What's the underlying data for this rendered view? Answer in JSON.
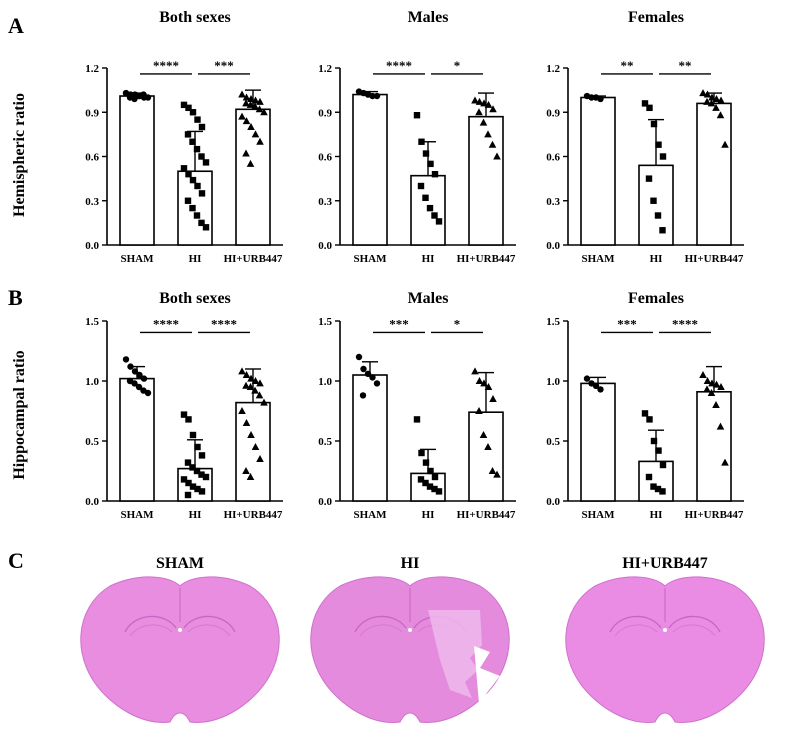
{
  "panels": [
    {
      "letter": "A",
      "ylabel": "Hemispheric ratio"
    },
    {
      "letter": "B",
      "ylabel": "Hippocampal ratio"
    },
    {
      "letter": "C"
    }
  ],
  "chart_data": [
    {
      "type": "bar",
      "panel": "A",
      "title": "Both sexes",
      "ylabel": "Hemispheric ratio",
      "categories": [
        "SHAM",
        "HI",
        "HI+URB447"
      ],
      "ylim": [
        0,
        1.2
      ],
      "yticks": [
        0.0,
        0.3,
        0.6,
        0.9,
        1.2
      ],
      "values": [
        1.01,
        0.5,
        0.92
      ],
      "error": [
        0.02,
        0.27,
        0.13
      ],
      "points": [
        [
          1.03,
          1.02,
          1.02,
          1.01,
          1.0,
          1.0,
          0.99,
          1.01,
          1.02,
          1.0
        ],
        [
          0.95,
          0.93,
          0.9,
          0.85,
          0.8,
          0.75,
          0.7,
          0.65,
          0.6,
          0.56,
          0.52,
          0.48,
          0.44,
          0.4,
          0.35,
          0.3,
          0.25,
          0.2,
          0.15,
          0.12
        ],
        [
          1.02,
          1.0,
          0.99,
          0.98,
          0.97,
          0.96,
          0.95,
          0.94,
          0.92,
          0.9,
          0.87,
          0.84,
          0.8,
          0.75,
          0.7,
          0.62,
          0.55
        ]
      ],
      "markers": [
        "circle",
        "square",
        "triangle"
      ],
      "significance": [
        {
          "from": 0,
          "to": 1,
          "label": "****",
          "y": 1.18
        },
        {
          "from": 1,
          "to": 2,
          "label": "***",
          "y": 1.18
        }
      ]
    },
    {
      "type": "bar",
      "panel": "A",
      "title": "Males",
      "ylabel": "Hemispheric ratio",
      "categories": [
        "SHAM",
        "HI",
        "HI+URB447"
      ],
      "ylim": [
        0,
        1.2
      ],
      "yticks": [
        0.0,
        0.3,
        0.6,
        0.9,
        1.2
      ],
      "values": [
        1.02,
        0.47,
        0.87
      ],
      "error": [
        0.02,
        0.23,
        0.16
      ],
      "points": [
        [
          1.04,
          1.03,
          1.02,
          1.01,
          1.01
        ],
        [
          0.88,
          0.7,
          0.62,
          0.55,
          0.48,
          0.4,
          0.32,
          0.25,
          0.2,
          0.16
        ],
        [
          0.98,
          0.97,
          0.96,
          0.95,
          0.92,
          0.9,
          0.83,
          0.75,
          0.68,
          0.6
        ]
      ],
      "markers": [
        "circle",
        "square",
        "triangle"
      ],
      "significance": [
        {
          "from": 0,
          "to": 1,
          "label": "****",
          "y": 1.18
        },
        {
          "from": 1,
          "to": 2,
          "label": "*",
          "y": 1.18
        }
      ]
    },
    {
      "type": "bar",
      "panel": "A",
      "title": "Females",
      "ylabel": "Hemispheric ratio",
      "categories": [
        "SHAM",
        "HI",
        "HI+URB447"
      ],
      "ylim": [
        0,
        1.2
      ],
      "yticks": [
        0.0,
        0.3,
        0.6,
        0.9,
        1.2
      ],
      "values": [
        1.0,
        0.54,
        0.96
      ],
      "error": [
        0.01,
        0.31,
        0.07
      ],
      "points": [
        [
          1.01,
          1.0,
          1.0,
          0.99
        ],
        [
          0.96,
          0.93,
          0.82,
          0.68,
          0.6,
          0.45,
          0.3,
          0.2,
          0.1
        ],
        [
          1.03,
          1.02,
          1.0,
          0.99,
          0.98,
          0.97,
          0.96,
          0.93,
          0.88,
          0.68
        ]
      ],
      "markers": [
        "circle",
        "square",
        "triangle"
      ],
      "significance": [
        {
          "from": 0,
          "to": 1,
          "label": "**",
          "y": 1.18
        },
        {
          "from": 1,
          "to": 2,
          "label": "**",
          "y": 1.18
        }
      ]
    },
    {
      "type": "bar",
      "panel": "B",
      "title": "Both sexes",
      "ylabel": "Hippocampal ratio",
      "categories": [
        "SHAM",
        "HI",
        "HI+URB447"
      ],
      "ylim": [
        0,
        1.5
      ],
      "yticks": [
        0.0,
        0.5,
        1.0,
        1.5
      ],
      "values": [
        1.02,
        0.27,
        0.82
      ],
      "error": [
        0.1,
        0.24,
        0.28
      ],
      "points": [
        [
          1.18,
          1.12,
          1.08,
          1.05,
          1.02,
          1.0,
          0.98,
          0.95,
          0.92,
          0.9
        ],
        [
          0.72,
          0.68,
          0.55,
          0.45,
          0.38,
          0.32,
          0.28,
          0.25,
          0.22,
          0.2,
          0.18,
          0.15,
          0.12,
          0.1,
          0.08,
          0.05
        ],
        [
          1.08,
          1.05,
          1.02,
          1.0,
          0.98,
          0.96,
          0.95,
          0.92,
          0.88,
          0.82,
          0.75,
          0.65,
          0.55,
          0.45,
          0.35,
          0.25,
          0.2
        ]
      ],
      "markers": [
        "circle",
        "square",
        "triangle"
      ],
      "significance": [
        {
          "from": 0,
          "to": 1,
          "label": "****",
          "y": 1.43
        },
        {
          "from": 1,
          "to": 2,
          "label": "****",
          "y": 1.43
        }
      ]
    },
    {
      "type": "bar",
      "panel": "B",
      "title": "Males",
      "ylabel": "Hippocampal ratio",
      "categories": [
        "SHAM",
        "HI",
        "HI+URB447"
      ],
      "ylim": [
        0,
        1.5
      ],
      "yticks": [
        0.0,
        0.5,
        1.0,
        1.5
      ],
      "values": [
        1.05,
        0.23,
        0.74
      ],
      "error": [
        0.11,
        0.2,
        0.33
      ],
      "points": [
        [
          1.2,
          1.1,
          1.06,
          1.03,
          0.98,
          0.88
        ],
        [
          0.68,
          0.4,
          0.32,
          0.25,
          0.2,
          0.18,
          0.15,
          0.12,
          0.1,
          0.08
        ],
        [
          1.08,
          1.0,
          0.98,
          0.95,
          0.85,
          0.75,
          0.55,
          0.45,
          0.25,
          0.22
        ]
      ],
      "markers": [
        "circle",
        "square",
        "triangle"
      ],
      "significance": [
        {
          "from": 0,
          "to": 1,
          "label": "***",
          "y": 1.43
        },
        {
          "from": 1,
          "to": 2,
          "label": "*",
          "y": 1.43
        }
      ]
    },
    {
      "type": "bar",
      "panel": "B",
      "title": "Females",
      "ylabel": "Hippocampal ratio",
      "categories": [
        "SHAM",
        "HI",
        "HI+URB447"
      ],
      "ylim": [
        0,
        1.5
      ],
      "yticks": [
        0.0,
        0.5,
        1.0,
        1.5
      ],
      "values": [
        0.98,
        0.33,
        0.91
      ],
      "error": [
        0.05,
        0.26,
        0.21
      ],
      "points": [
        [
          1.02,
          0.98,
          0.96,
          0.93
        ],
        [
          0.73,
          0.68,
          0.5,
          0.42,
          0.3,
          0.2,
          0.12,
          0.1,
          0.08
        ],
        [
          1.05,
          1.0,
          0.98,
          0.97,
          0.95,
          0.93,
          0.9,
          0.8,
          0.62,
          0.32
        ]
      ],
      "markers": [
        "circle",
        "square",
        "triangle"
      ],
      "significance": [
        {
          "from": 0,
          "to": 1,
          "label": "***",
          "y": 1.43
        },
        {
          "from": 1,
          "to": 2,
          "label": "****",
          "y": 1.43
        }
      ]
    }
  ],
  "images": [
    {
      "title": "SHAM",
      "icon": "brain-section-sham-icon",
      "color": "#e88de0",
      "lesion": false
    },
    {
      "title": "HI",
      "icon": "brain-section-hi-icon",
      "color": "#e58bde",
      "lesion": true
    },
    {
      "title": "HI+URB447",
      "icon": "brain-section-hi-urb447-icon",
      "color": "#ea8ce4",
      "lesion": false
    }
  ]
}
